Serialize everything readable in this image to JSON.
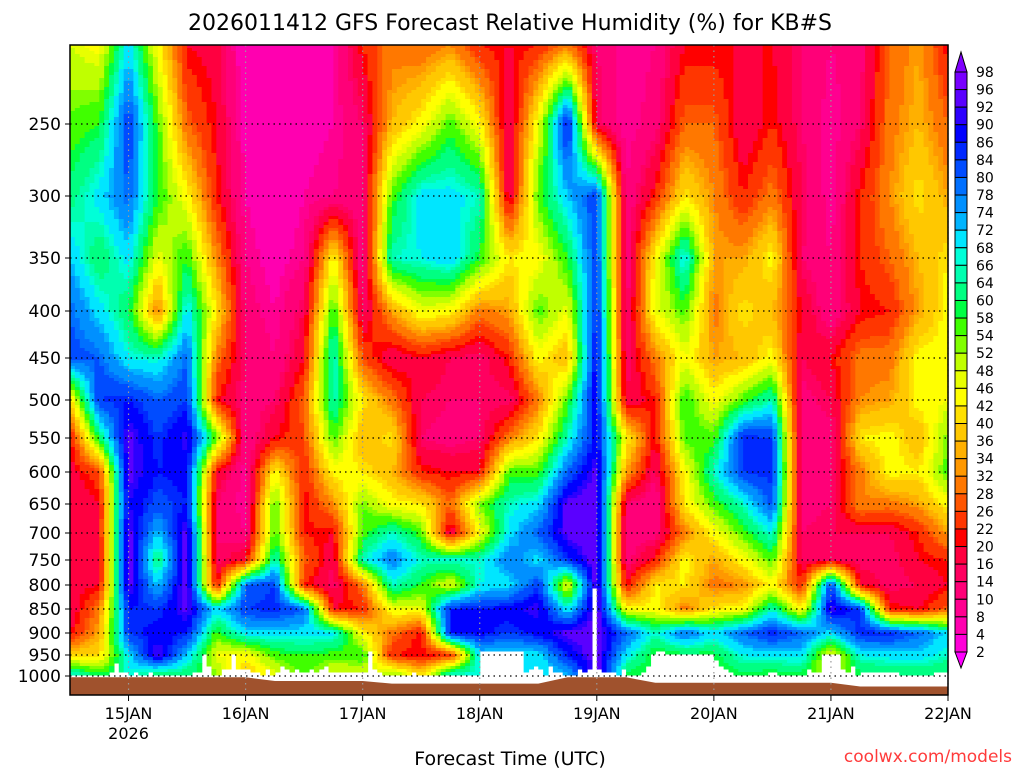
{
  "chart_data": {
    "type": "heatmap",
    "title": "2026011412 GFS Forecast Relative Humidity (%) for KB#S",
    "xlabel": "Forecast Time (UTC)",
    "ylabel": "",
    "credit": "coolwx.com/models",
    "x_start": "2026-01-14T12:00Z",
    "x_step_hours": 6,
    "x_ticks": [
      {
        "label": "15JAN",
        "sub": "2026",
        "day": 0.5
      },
      {
        "label": "16JAN",
        "sub": "",
        "day": 1.5
      },
      {
        "label": "17JAN",
        "sub": "",
        "day": 2.5
      },
      {
        "label": "18JAN",
        "sub": "",
        "day": 3.5
      },
      {
        "label": "19JAN",
        "sub": "",
        "day": 4.5
      },
      {
        "label": "20JAN",
        "sub": "",
        "day": 5.5
      },
      {
        "label": "21JAN",
        "sub": "",
        "day": 6.5
      },
      {
        "label": "22JAN",
        "sub": "",
        "day": 7.5
      }
    ],
    "y_ticks": [
      "250",
      "300",
      "350",
      "400",
      "450",
      "500",
      "550",
      "600",
      "650",
      "700",
      "750",
      "800",
      "850",
      "900",
      "950",
      "1000"
    ],
    "levels_hpa": [
      200,
      250,
      300,
      350,
      400,
      450,
      500,
      550,
      600,
      650,
      700,
      750,
      800,
      850,
      900,
      950,
      1000
    ],
    "surface_pressure_hpa": [
      1003,
      1003,
      1003,
      1003,
      1003,
      1003,
      1003,
      1012,
      1012,
      1012,
      1012,
      1018,
      1018,
      1018,
      1018,
      1018,
      1018,
      1003,
      1003,
      1003,
      1016,
      1016,
      1016,
      1016,
      1016,
      1016,
      1016,
      1025,
      1025,
      1025,
      1025
    ],
    "rh": [
      [
        48,
        55,
        62,
        72,
        80,
        82,
        40,
        20,
        18,
        16,
        18,
        20,
        18,
        16,
        20,
        40,
        70
      ],
      [
        44,
        58,
        70,
        60,
        70,
        80,
        84,
        60,
        25,
        20,
        20,
        18,
        20,
        30,
        35,
        40,
        60
      ],
      [
        70,
        84,
        80,
        70,
        60,
        68,
        86,
        94,
        94,
        90,
        94,
        96,
        94,
        86,
        84,
        70,
        66
      ],
      [
        44,
        56,
        58,
        46,
        30,
        66,
        80,
        84,
        86,
        82,
        72,
        60,
        72,
        84,
        88,
        94,
        58
      ],
      [
        20,
        28,
        44,
        58,
        70,
        80,
        84,
        92,
        88,
        86,
        94,
        96,
        96,
        94,
        86,
        72,
        60
      ],
      [
        18,
        20,
        22,
        32,
        42,
        30,
        22,
        56,
        20,
        14,
        14,
        14,
        20,
        70,
        56,
        46,
        54
      ],
      [
        4,
        6,
        8,
        10,
        12,
        14,
        12,
        10,
        8,
        8,
        10,
        20,
        80,
        84,
        70,
        44,
        36
      ],
      [
        4,
        4,
        4,
        6,
        8,
        10,
        14,
        20,
        44,
        56,
        56,
        66,
        84,
        86,
        70,
        56,
        46
      ],
      [
        6,
        6,
        8,
        10,
        16,
        20,
        28,
        26,
        22,
        20,
        22,
        28,
        22,
        80,
        70,
        58,
        54
      ],
      [
        8,
        8,
        10,
        44,
        58,
        68,
        66,
        56,
        44,
        32,
        20,
        16,
        14,
        20,
        70,
        56,
        46
      ],
      [
        22,
        14,
        12,
        10,
        14,
        26,
        42,
        36,
        42,
        54,
        56,
        66,
        30,
        22,
        44,
        58,
        46
      ],
      [
        30,
        36,
        56,
        66,
        34,
        16,
        30,
        42,
        36,
        44,
        66,
        78,
        66,
        46,
        30,
        22,
        56
      ],
      [
        28,
        44,
        70,
        68,
        46,
        20,
        16,
        14,
        22,
        42,
        56,
        66,
        58,
        46,
        20,
        20,
        42
      ],
      [
        32,
        56,
        70,
        72,
        44,
        16,
        14,
        12,
        20,
        28,
        16,
        68,
        46,
        86,
        88,
        22,
        70
      ],
      [
        22,
        44,
        66,
        58,
        30,
        14,
        14,
        14,
        20,
        54,
        44,
        66,
        68,
        86,
        88,
        70,
        68
      ],
      [
        20,
        14,
        16,
        42,
        34,
        22,
        14,
        30,
        56,
        66,
        70,
        78,
        70,
        88,
        84,
        68,
        70
      ],
      [
        22,
        46,
        56,
        44,
        56,
        44,
        30,
        42,
        56,
        70,
        80,
        70,
        84,
        92,
        88,
        70,
        66
      ],
      [
        30,
        88,
        72,
        58,
        46,
        36,
        56,
        66,
        80,
        94,
        94,
        84,
        44,
        68,
        94,
        86,
        72
      ],
      [
        14,
        16,
        84,
        84,
        86,
        90,
        90,
        88,
        94,
        96,
        96,
        96,
        96,
        96,
        96,
        96,
        94
      ],
      [
        8,
        8,
        10,
        10,
        12,
        14,
        16,
        44,
        34,
        14,
        12,
        12,
        20,
        44,
        80,
        70,
        58
      ],
      [
        10,
        12,
        22,
        44,
        46,
        30,
        22,
        20,
        14,
        10,
        12,
        22,
        42,
        44,
        66,
        56,
        56
      ],
      [
        20,
        28,
        42,
        70,
        56,
        46,
        58,
        56,
        44,
        42,
        30,
        44,
        42,
        30,
        80,
        58,
        56
      ],
      [
        20,
        28,
        32,
        34,
        30,
        34,
        44,
        56,
        66,
        56,
        44,
        34,
        30,
        42,
        70,
        58,
        54
      ],
      [
        20,
        16,
        22,
        34,
        42,
        36,
        56,
        86,
        84,
        66,
        56,
        44,
        32,
        44,
        80,
        68,
        58
      ],
      [
        20,
        22,
        30,
        44,
        36,
        44,
        66,
        84,
        86,
        82,
        68,
        56,
        44,
        66,
        86,
        70,
        56
      ],
      [
        14,
        14,
        16,
        14,
        20,
        16,
        12,
        10,
        10,
        12,
        14,
        16,
        22,
        42,
        80,
        70,
        58
      ],
      [
        10,
        8,
        8,
        10,
        10,
        20,
        16,
        12,
        14,
        14,
        16,
        16,
        84,
        92,
        70,
        44,
        46
      ],
      [
        12,
        14,
        22,
        22,
        20,
        30,
        32,
        42,
        30,
        32,
        16,
        14,
        20,
        84,
        86,
        68,
        58
      ],
      [
        28,
        30,
        32,
        28,
        22,
        30,
        34,
        44,
        44,
        30,
        16,
        14,
        14,
        22,
        86,
        70,
        58
      ],
      [
        34,
        36,
        42,
        36,
        34,
        44,
        44,
        36,
        42,
        34,
        22,
        20,
        16,
        20,
        80,
        70,
        60
      ],
      [
        20,
        28,
        34,
        42,
        44,
        44,
        46,
        54,
        56,
        44,
        34,
        22,
        20,
        28,
        70,
        66,
        58
      ]
    ],
    "colorbar": {
      "labels": [
        "98",
        "96",
        "92",
        "90",
        "86",
        "84",
        "80",
        "78",
        "74",
        "72",
        "68",
        "66",
        "64",
        "60",
        "58",
        "54",
        "52",
        "48",
        "46",
        "42",
        "40",
        "36",
        "34",
        "32",
        "28",
        "26",
        "22",
        "20",
        "16",
        "14",
        "10",
        "8",
        "4",
        "2"
      ],
      "bounds": [
        98,
        96,
        92,
        90,
        86,
        84,
        80,
        78,
        74,
        72,
        68,
        66,
        64,
        60,
        58,
        54,
        52,
        48,
        46,
        42,
        40,
        36,
        34,
        32,
        28,
        26,
        22,
        20,
        16,
        14,
        10,
        8,
        4,
        2
      ],
      "colors": [
        "#7800ff",
        "#5a00ff",
        "#2c00ff",
        "#0000ff",
        "#0028ff",
        "#004cff",
        "#0070ff",
        "#0090ff",
        "#00b4ff",
        "#00e6ff",
        "#00ffd8",
        "#00ffb0",
        "#00ff82",
        "#00ff44",
        "#40ff00",
        "#80ff00",
        "#c0ff00",
        "#e8ff00",
        "#ffff00",
        "#ffe000",
        "#ffc800",
        "#ffb000",
        "#ff9800",
        "#ff7800",
        "#ff5600",
        "#ff3600",
        "#ff0000",
        "#ff0040",
        "#ff0060",
        "#ff0078",
        "#ff0090",
        "#ff00b0",
        "#ff00d8"
      ],
      "over_color": "#8000ff",
      "under_color": "#ff00ff"
    },
    "terrain_color": "#a0522d"
  }
}
